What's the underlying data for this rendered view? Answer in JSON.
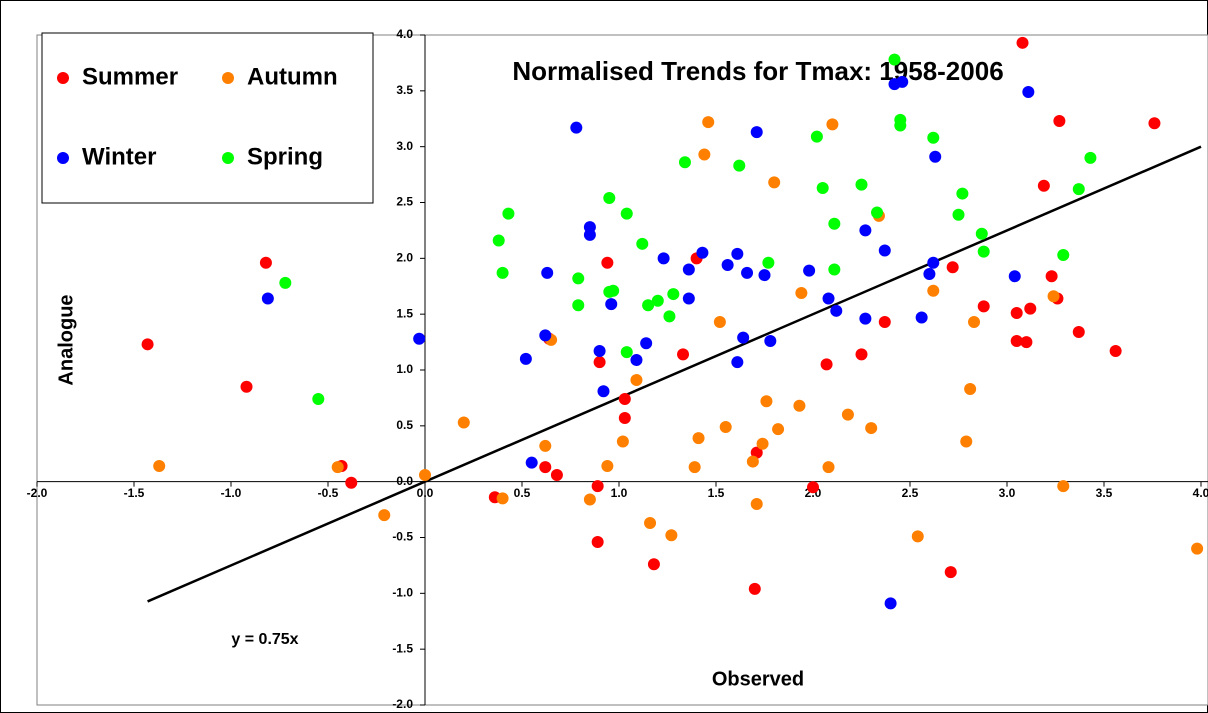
{
  "chart_data": {
    "type": "scatter",
    "title": "Normalised Trends for Tmax: 1958-2006",
    "x_label": "Observed",
    "y_label": "Analogue",
    "xlim": [
      -2.0,
      4.0
    ],
    "ylim": [
      -2.0,
      4.0
    ],
    "xticks": [
      {
        "value": -2,
        "label": "-2.0"
      },
      {
        "value": -1.5,
        "label": "-1.5"
      },
      {
        "value": -1,
        "label": "-1.0"
      },
      {
        "value": -0.5,
        "label": "-0.5"
      },
      {
        "value": 0,
        "label": "0.0"
      },
      {
        "value": 0.5,
        "label": "0.5"
      },
      {
        "value": 1,
        "label": "1.0"
      },
      {
        "value": 1.5,
        "label": "1.5"
      },
      {
        "value": 2,
        "label": "2.0"
      },
      {
        "value": 2.5,
        "label": "2.5"
      },
      {
        "value": 3,
        "label": "3.0"
      },
      {
        "value": 3.5,
        "label": "3.5"
      },
      {
        "value": 4,
        "label": "4.0"
      }
    ],
    "yticks": [
      {
        "value": -2,
        "label": "-2.0"
      },
      {
        "value": -1.5,
        "label": "-1.5"
      },
      {
        "value": -1,
        "label": "-1.0"
      },
      {
        "value": -0.5,
        "label": "-0.5"
      },
      {
        "value": 0,
        "label": "0.0"
      },
      {
        "value": 0.5,
        "label": "0.5"
      },
      {
        "value": 1,
        "label": "1.0"
      },
      {
        "value": 1.5,
        "label": "1.5"
      },
      {
        "value": 2,
        "label": "2.0"
      },
      {
        "value": 2.5,
        "label": "2.5"
      },
      {
        "value": 3,
        "label": "3.0"
      },
      {
        "value": 3.5,
        "label": "3.5"
      },
      {
        "value": 4,
        "label": "4.0"
      }
    ],
    "grid": false,
    "legend": "top-left",
    "trendline": {
      "label": "y = 0.75x",
      "slope": 0.75,
      "x_start": -1.43,
      "x_end": 4.0
    },
    "series": [
      {
        "name": "Summer",
        "color": "#ff0000",
        "x": [
          -1.43,
          -0.92,
          -0.82,
          -0.43,
          -0.38,
          0.36,
          0.62,
          0.64,
          0.68,
          0.89,
          0.89,
          0.9,
          0.94,
          1.03,
          1.03,
          1.18,
          1.33,
          1.4,
          1.71,
          1.7,
          2.0,
          2.07,
          2.25,
          2.37,
          2.72,
          2.71,
          2.88,
          3.05,
          3.05,
          3.08,
          3.1,
          3.12,
          3.19,
          3.27,
          3.23,
          3.26,
          3.37,
          3.56,
          3.76
        ],
        "y": [
          1.23,
          0.85,
          1.96,
          0.14,
          -0.01,
          -0.14,
          0.13,
          1.28,
          0.06,
          -0.04,
          -0.54,
          1.07,
          1.96,
          0.74,
          0.57,
          -0.74,
          1.14,
          2.0,
          0.26,
          -0.96,
          -0.05,
          1.05,
          1.14,
          1.43,
          1.92,
          -0.81,
          1.57,
          1.26,
          1.51,
          3.93,
          1.25,
          1.55,
          2.65,
          3.23,
          1.84,
          1.64,
          1.34,
          1.17,
          3.21
        ]
      },
      {
        "name": "Autumn",
        "color": "#ff8000",
        "x": [
          -1.37,
          -0.45,
          -0.21,
          0.0,
          0.2,
          0.4,
          0.62,
          0.65,
          0.85,
          0.94,
          1.02,
          1.09,
          1.16,
          1.27,
          1.39,
          1.41,
          1.44,
          1.46,
          1.52,
          1.55,
          1.69,
          1.71,
          1.74,
          1.76,
          1.8,
          1.82,
          1.93,
          1.94,
          2.08,
          2.1,
          2.18,
          2.3,
          2.34,
          2.54,
          2.62,
          2.79,
          2.81,
          2.83,
          3.24,
          3.29,
          3.98
        ],
        "y": [
          0.14,
          0.13,
          -0.3,
          0.06,
          0.53,
          -0.15,
          0.32,
          1.27,
          -0.16,
          0.14,
          0.36,
          0.91,
          -0.37,
          -0.48,
          0.13,
          0.39,
          2.93,
          3.22,
          1.43,
          0.49,
          0.18,
          -0.2,
          0.34,
          0.72,
          2.68,
          0.47,
          0.68,
          1.69,
          0.13,
          3.2,
          0.6,
          0.48,
          2.38,
          -0.49,
          1.71,
          0.36,
          0.83,
          1.43,
          1.66,
          -0.04,
          -0.6
        ]
      },
      {
        "name": "Winter",
        "color": "#0000ff",
        "x": [
          -0.81,
          -0.03,
          0.52,
          0.55,
          0.62,
          0.63,
          0.78,
          0.85,
          0.85,
          0.9,
          0.92,
          0.96,
          1.09,
          1.14,
          1.23,
          1.36,
          1.36,
          1.43,
          1.56,
          1.61,
          1.61,
          1.64,
          1.66,
          1.71,
          1.75,
          1.78,
          1.98,
          2.08,
          2.12,
          2.27,
          2.27,
          2.37,
          2.4,
          2.42,
          2.46,
          2.56,
          2.6,
          2.62,
          2.63,
          3.04,
          3.11
        ],
        "y": [
          1.64,
          1.28,
          1.1,
          0.17,
          1.31,
          1.87,
          3.17,
          2.28,
          2.21,
          1.17,
          0.81,
          1.59,
          1.09,
          1.24,
          2.0,
          1.9,
          1.64,
          2.05,
          1.94,
          2.04,
          1.07,
          1.29,
          1.87,
          3.13,
          1.85,
          1.26,
          1.89,
          1.64,
          1.53,
          2.25,
          1.46,
          2.07,
          -1.09,
          3.56,
          3.58,
          1.47,
          1.86,
          1.96,
          2.91,
          1.84,
          3.49
        ]
      },
      {
        "name": "Spring",
        "color": "#00ff00",
        "x": [
          -0.72,
          -0.55,
          0.38,
          0.4,
          0.43,
          0.79,
          0.79,
          0.95,
          0.95,
          0.97,
          1.04,
          1.04,
          1.12,
          1.15,
          1.2,
          1.26,
          1.28,
          1.34,
          1.62,
          1.77,
          2.02,
          2.05,
          2.11,
          2.11,
          2.25,
          2.33,
          2.42,
          2.45,
          2.45,
          2.62,
          2.75,
          2.77,
          2.87,
          2.88,
          3.29,
          3.37,
          3.43
        ],
        "y": [
          1.78,
          0.74,
          2.16,
          1.87,
          2.4,
          1.58,
          1.82,
          2.54,
          1.7,
          1.71,
          2.4,
          1.16,
          2.13,
          1.58,
          1.62,
          1.48,
          1.68,
          2.86,
          2.83,
          1.96,
          3.09,
          2.63,
          2.31,
          1.9,
          2.66,
          2.41,
          3.78,
          3.24,
          3.19,
          3.08,
          2.39,
          2.58,
          2.22,
          2.06,
          2.03,
          2.62,
          2.9
        ]
      }
    ]
  }
}
